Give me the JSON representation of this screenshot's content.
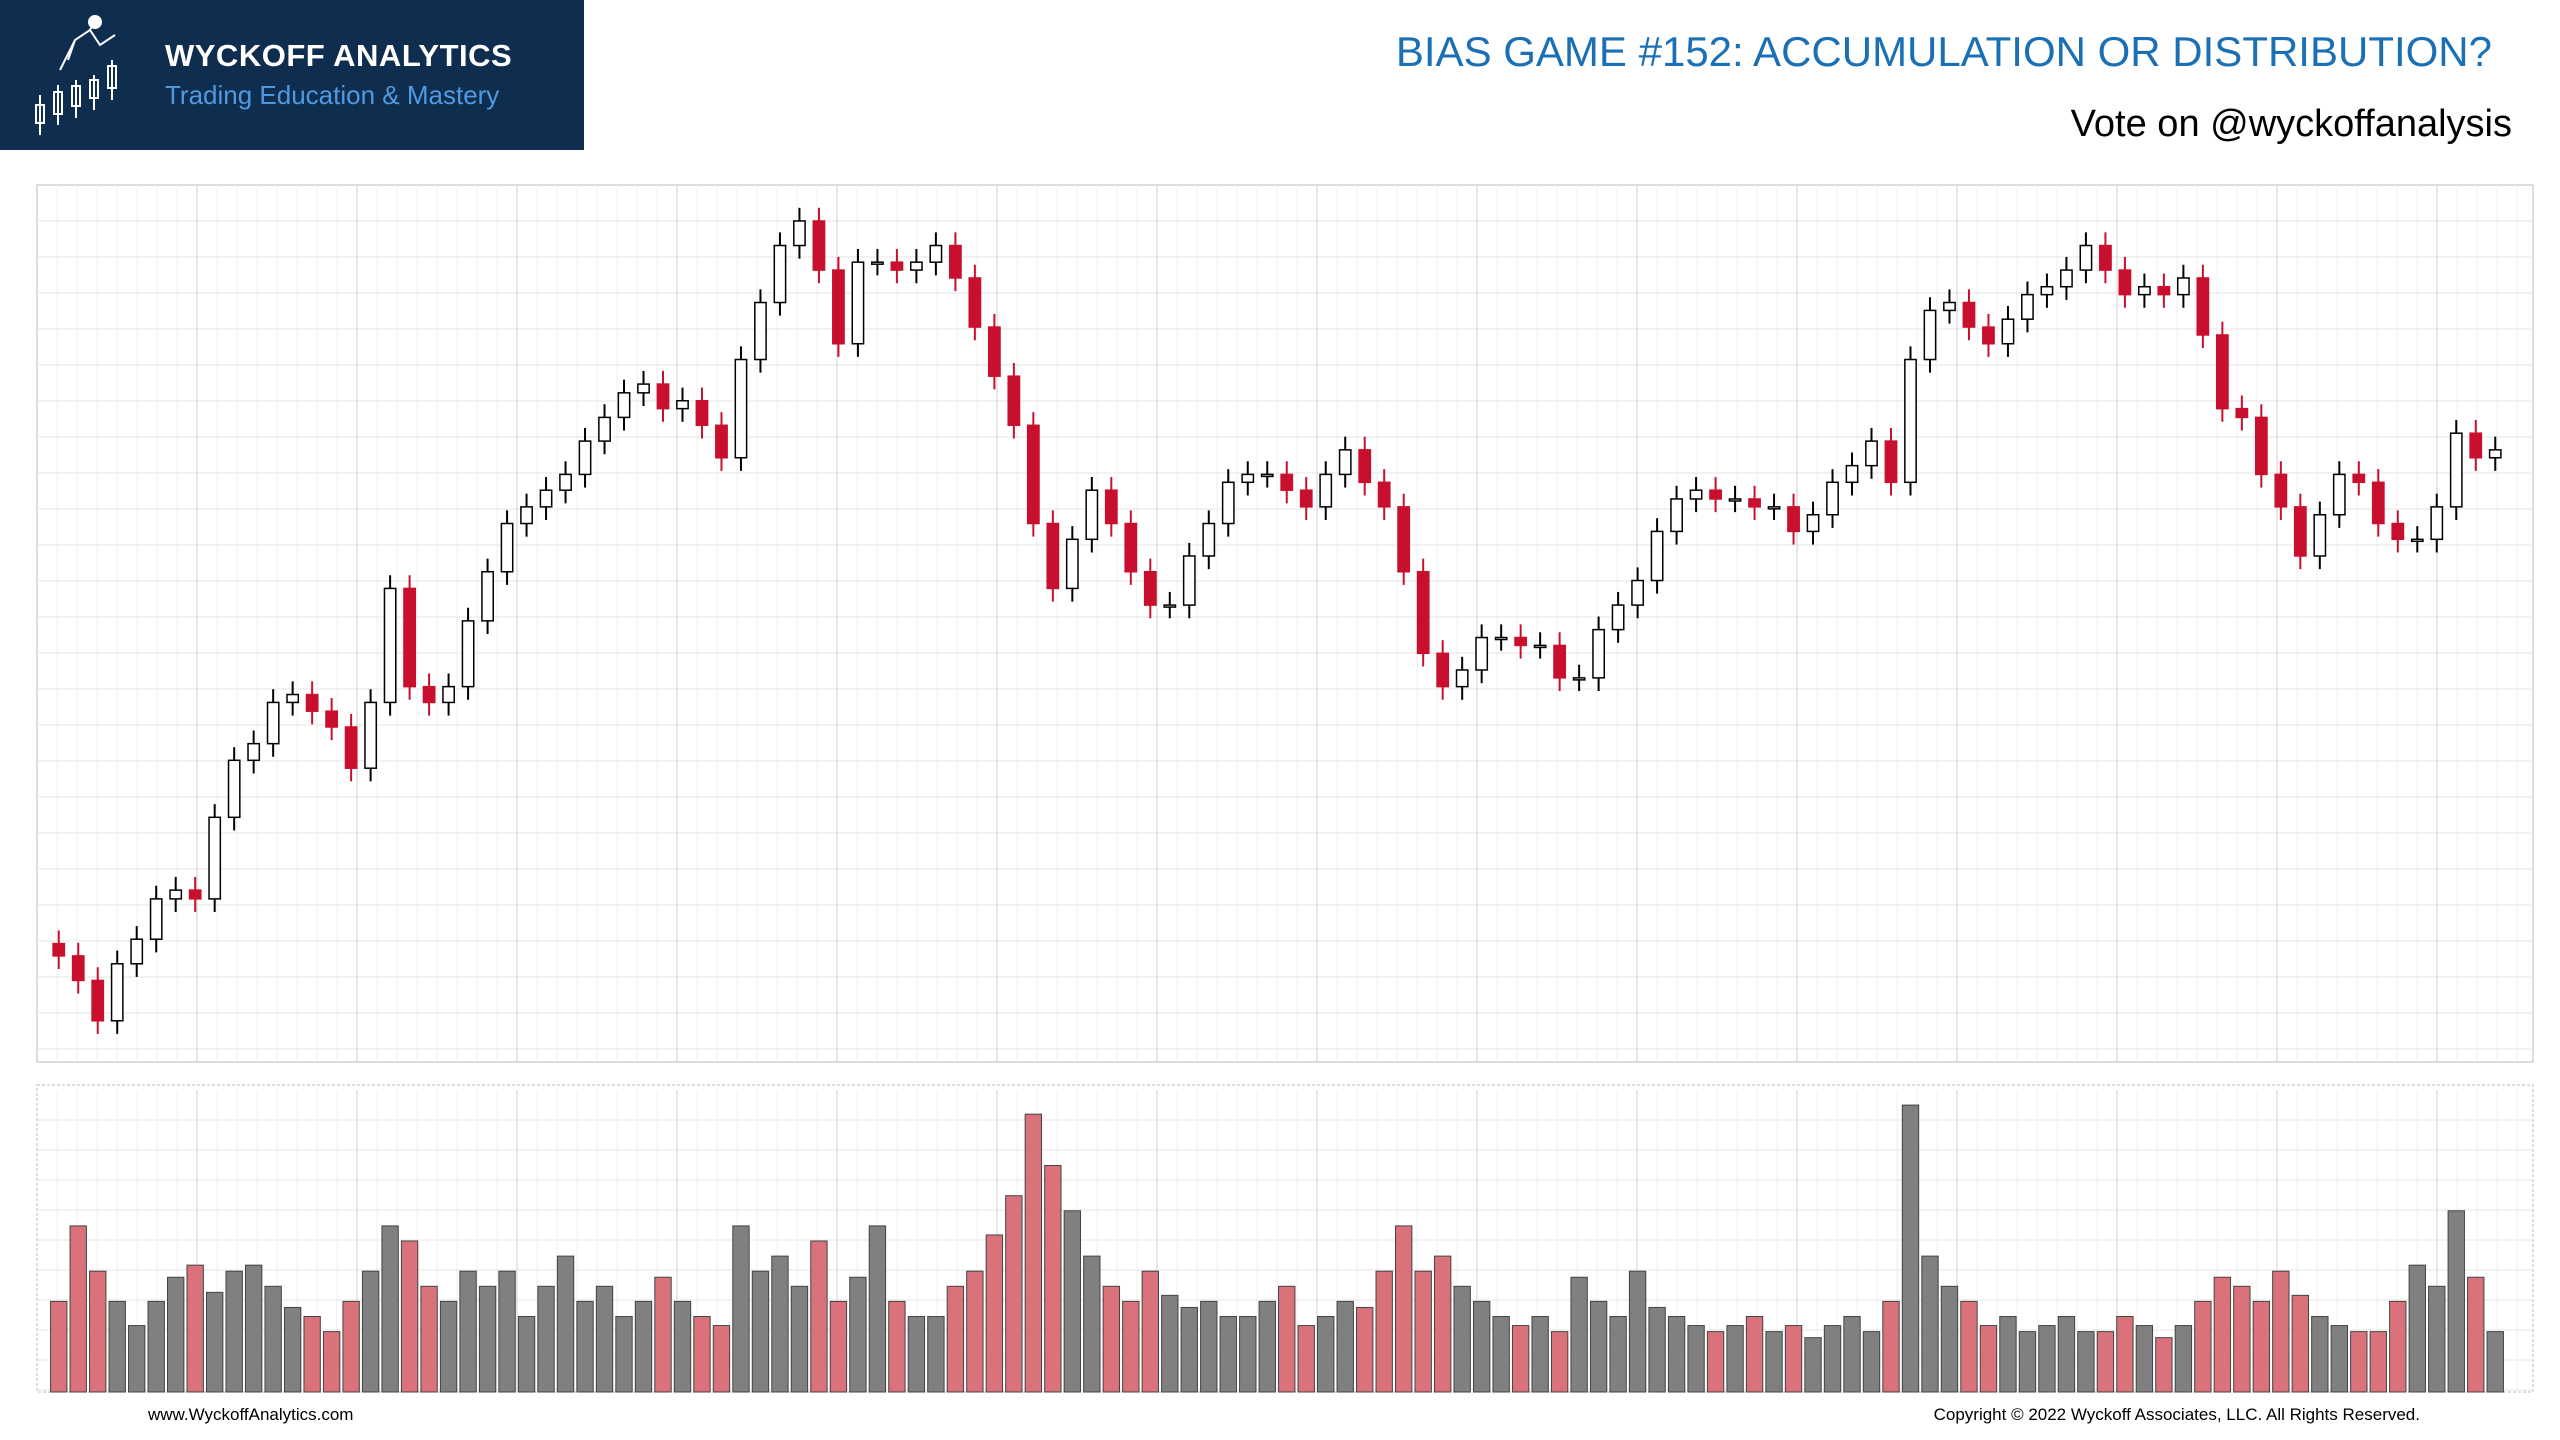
{
  "header": {
    "brand": "WYCKOFF ANALYTICS",
    "tagline": "Trading Education & Mastery",
    "title": "BIAS GAME #152: ACCUMULATION OR DISTRIBUTION?",
    "subtitle": "Vote on @wyckoffanalysis"
  },
  "footer": {
    "website": "www.WyckoffAnalytics.com",
    "copyright": "Copyright © 2022 Wyckoff Associates, LLC. All Rights Reserved."
  },
  "chart_data": {
    "type": "candlestick",
    "ylim": [
      0,
      100
    ],
    "volume_ylim": [
      0,
      100
    ],
    "grid": true,
    "up_color": "#000000",
    "down_color": "#c8102e",
    "volume_up_color": "#808080",
    "volume_down_color": "#d9727a",
    "open": [
      13.5,
      12.1,
      9.3,
      4.7,
      11.2,
      14.0,
      18.6,
      19.6,
      18.6,
      27.9,
      34.4,
      36.3,
      41.0,
      41.9,
      40.0,
      38.2,
      33.5,
      41.0,
      54.0,
      42.8,
      41.0,
      42.8,
      50.3,
      55.9,
      61.4,
      63.3,
      65.2,
      67.0,
      70.8,
      73.5,
      76.3,
      77.3,
      74.5,
      75.4,
      72.6,
      68.9,
      80.1,
      86.6,
      93.1,
      95.9,
      90.3,
      81.9,
      91.2,
      91.2,
      90.3,
      91.2,
      93.1,
      89.4,
      83.8,
      78.2,
      72.6,
      61.4,
      54.0,
      59.6,
      65.2,
      61.4,
      55.9,
      52.1,
      52.1,
      57.7,
      61.4,
      66.1,
      67.0,
      67.0,
      65.2,
      63.3,
      67.0,
      69.8,
      66.1,
      63.3,
      55.9,
      46.6,
      42.8,
      44.7,
      48.4,
      48.4,
      47.5,
      47.5,
      43.8,
      43.8,
      49.3,
      52.1,
      54.9,
      60.5,
      64.2,
      65.2,
      64.2,
      64.2,
      63.3,
      63.3,
      60.5,
      62.4,
      66.1,
      68.0,
      70.8,
      66.1,
      80.1,
      85.7,
      86.6,
      83.8,
      81.9,
      84.7,
      87.5,
      88.4,
      90.3,
      93.1,
      90.3,
      87.5,
      88.4,
      87.5,
      89.4,
      82.9,
      74.5,
      73.5,
      67.0,
      63.3,
      57.7,
      62.4,
      67.0,
      66.1,
      61.4,
      59.6,
      59.6,
      63.3,
      71.7,
      68.9
    ],
    "high": [
      15.0,
      13.6,
      10.8,
      12.7,
      15.5,
      20.1,
      21.1,
      21.1,
      29.4,
      35.9,
      37.8,
      42.5,
      43.4,
      43.4,
      41.5,
      39.7,
      42.5,
      55.5,
      55.5,
      44.3,
      44.3,
      51.8,
      57.4,
      62.9,
      64.8,
      66.7,
      68.5,
      72.3,
      75.0,
      77.8,
      78.8,
      78.8,
      76.9,
      76.9,
      74.1,
      81.6,
      88.1,
      94.6,
      97.4,
      97.4,
      91.8,
      92.7,
      92.7,
      92.7,
      92.7,
      94.6,
      94.6,
      90.9,
      85.3,
      79.7,
      74.1,
      62.9,
      61.1,
      66.7,
      66.7,
      62.9,
      57.4,
      53.6,
      59.2,
      62.9,
      67.6,
      68.5,
      68.5,
      68.5,
      66.7,
      68.5,
      71.3,
      71.3,
      67.6,
      64.8,
      57.4,
      48.1,
      46.2,
      49.9,
      49.9,
      49.9,
      49.0,
      49.0,
      45.3,
      50.8,
      53.6,
      56.4,
      62.0,
      65.7,
      66.7,
      66.7,
      65.7,
      65.7,
      64.8,
      64.8,
      63.9,
      67.6,
      69.5,
      72.3,
      72.3,
      81.6,
      87.2,
      88.1,
      88.1,
      85.3,
      86.2,
      89.0,
      89.9,
      91.8,
      94.6,
      94.6,
      91.8,
      89.9,
      89.9,
      90.9,
      90.9,
      84.4,
      76.0,
      75.0,
      68.5,
      64.8,
      63.9,
      68.5,
      68.5,
      67.6,
      62.9,
      61.1,
      64.8,
      73.2,
      73.2,
      71.3
    ],
    "low": [
      10.6,
      7.8,
      3.2,
      3.2,
      9.7,
      12.5,
      17.1,
      17.1,
      17.1,
      26.4,
      32.9,
      34.8,
      39.5,
      38.5,
      36.7,
      32.0,
      32.0,
      39.5,
      41.3,
      39.5,
      39.5,
      41.3,
      48.8,
      54.4,
      59.9,
      61.8,
      63.7,
      65.5,
      69.3,
      72.0,
      74.8,
      73.0,
      73.0,
      71.1,
      67.4,
      67.4,
      78.6,
      85.1,
      91.6,
      88.8,
      80.4,
      80.4,
      89.7,
      88.8,
      88.8,
      89.7,
      87.9,
      82.3,
      76.7,
      71.1,
      59.9,
      52.5,
      52.5,
      58.1,
      59.9,
      54.4,
      50.6,
      50.6,
      50.6,
      56.2,
      59.9,
      64.6,
      65.5,
      63.7,
      61.8,
      61.8,
      65.5,
      64.6,
      61.8,
      54.4,
      45.1,
      41.3,
      41.3,
      43.2,
      46.9,
      46.0,
      46.0,
      42.3,
      42.3,
      42.3,
      47.8,
      50.6,
      53.4,
      59.0,
      62.7,
      62.7,
      62.7,
      61.8,
      61.8,
      59.0,
      59.0,
      60.9,
      64.6,
      66.5,
      64.6,
      64.6,
      78.6,
      84.2,
      82.3,
      80.4,
      80.4,
      83.2,
      86.0,
      86.9,
      88.8,
      88.8,
      86.0,
      86.0,
      86.0,
      86.0,
      81.4,
      73.0,
      72.0,
      65.5,
      61.8,
      56.2,
      56.2,
      60.9,
      64.6,
      59.9,
      58.1,
      58.1,
      58.1,
      61.8,
      67.4,
      67.4
    ],
    "close": [
      12.1,
      9.3,
      4.7,
      11.2,
      14.0,
      18.6,
      19.6,
      18.6,
      27.9,
      34.4,
      36.3,
      41.0,
      41.9,
      40.0,
      38.2,
      33.5,
      41.0,
      54.0,
      42.8,
      41.0,
      42.8,
      50.3,
      55.9,
      61.4,
      63.3,
      65.2,
      67.0,
      70.8,
      73.5,
      76.3,
      77.3,
      74.5,
      75.4,
      72.6,
      68.9,
      80.1,
      86.6,
      93.1,
      95.9,
      90.3,
      81.9,
      91.2,
      91.2,
      90.3,
      91.2,
      93.1,
      89.4,
      83.8,
      78.2,
      72.6,
      61.4,
      54.0,
      59.6,
      65.2,
      61.4,
      55.9,
      52.1,
      52.1,
      57.7,
      61.4,
      66.1,
      67.0,
      67.0,
      65.2,
      63.3,
      67.0,
      69.8,
      66.1,
      63.3,
      55.9,
      46.6,
      42.8,
      44.7,
      48.4,
      48.4,
      47.5,
      47.5,
      43.8,
      43.8,
      49.3,
      52.1,
      54.9,
      60.5,
      64.2,
      65.2,
      64.2,
      64.2,
      63.3,
      63.3,
      60.5,
      62.4,
      66.1,
      68.0,
      70.8,
      66.1,
      80.1,
      85.7,
      86.6,
      83.8,
      81.9,
      84.7,
      87.5,
      88.4,
      90.3,
      93.1,
      90.3,
      87.5,
      88.4,
      87.5,
      89.4,
      82.9,
      74.5,
      73.5,
      67.0,
      63.3,
      57.7,
      62.4,
      67.0,
      66.1,
      61.4,
      59.6,
      59.6,
      63.3,
      71.7,
      68.9,
      69.8
    ],
    "volume": [
      30,
      55,
      40,
      30,
      22,
      30,
      38,
      42,
      33,
      40,
      42,
      35,
      28,
      25,
      20,
      30,
      40,
      55,
      50,
      35,
      30,
      40,
      35,
      40,
      25,
      35,
      45,
      30,
      35,
      25,
      30,
      38,
      30,
      25,
      22,
      55,
      40,
      45,
      35,
      50,
      30,
      38,
      55,
      30,
      25,
      25,
      35,
      40,
      52,
      65,
      92,
      75,
      60,
      45,
      35,
      30,
      40,
      32,
      28,
      30,
      25,
      25,
      30,
      35,
      22,
      25,
      30,
      28,
      40,
      55,
      40,
      45,
      35,
      30,
      25,
      22,
      25,
      20,
      38,
      30,
      25,
      40,
      28,
      25,
      22,
      20,
      22,
      25,
      20,
      22,
      18,
      22,
      25,
      20,
      30,
      95,
      45,
      35,
      30,
      22,
      25,
      20,
      22,
      25,
      20,
      20,
      25,
      22,
      18,
      22,
      30,
      38,
      35,
      30,
      40,
      32,
      25,
      22,
      20,
      20,
      30,
      42,
      35,
      60,
      38,
      20
    ]
  }
}
